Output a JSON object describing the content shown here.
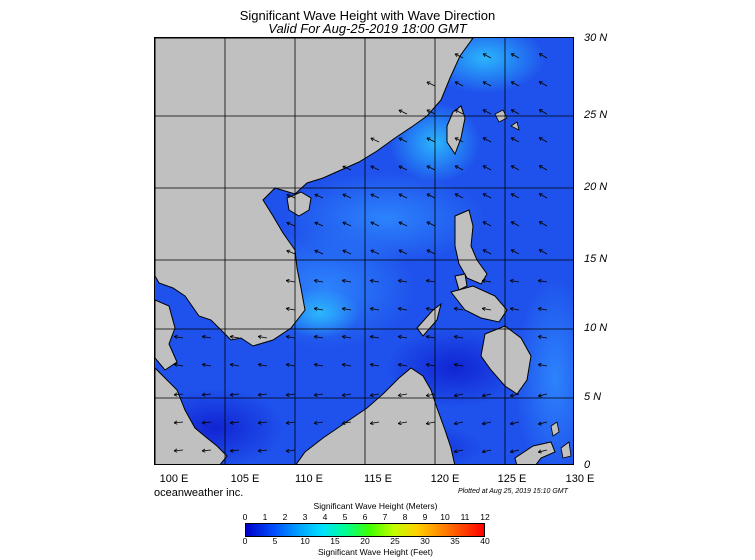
{
  "title": "Significant Wave Height with Wave Direction",
  "subtitle": "Valid For Aug-25-2019 18:00 GMT",
  "branding": "oceanweather inc.",
  "plotted": "Plotted at Aug 25, 2019 15:10 GMT",
  "lon_labels": [
    "100 E",
    "105 E",
    "110 E",
    "115 E",
    "120 E",
    "125 E",
    "130 E"
  ],
  "lat_labels": [
    "30 N",
    "25 N",
    "20 N",
    "15 N",
    "10 N",
    "5 N",
    "0"
  ],
  "legend": {
    "meters_title": "Significant Wave Height (Meters)",
    "feet_title": "Significant Wave Height (Feet)",
    "meters_ticks": [
      "0",
      "1",
      "2",
      "3",
      "4",
      "5",
      "6",
      "7",
      "8",
      "9",
      "10",
      "11",
      "12"
    ],
    "feet_ticks": [
      "0",
      "5",
      "10",
      "15",
      "20",
      "25",
      "30",
      "35",
      "40"
    ]
  },
  "colors": {
    "land": "#c0c0c0",
    "sea_deep": "#1a2fe0",
    "sea_mid": "#1f5cf0",
    "sea_light": "#2aa6f5"
  }
}
